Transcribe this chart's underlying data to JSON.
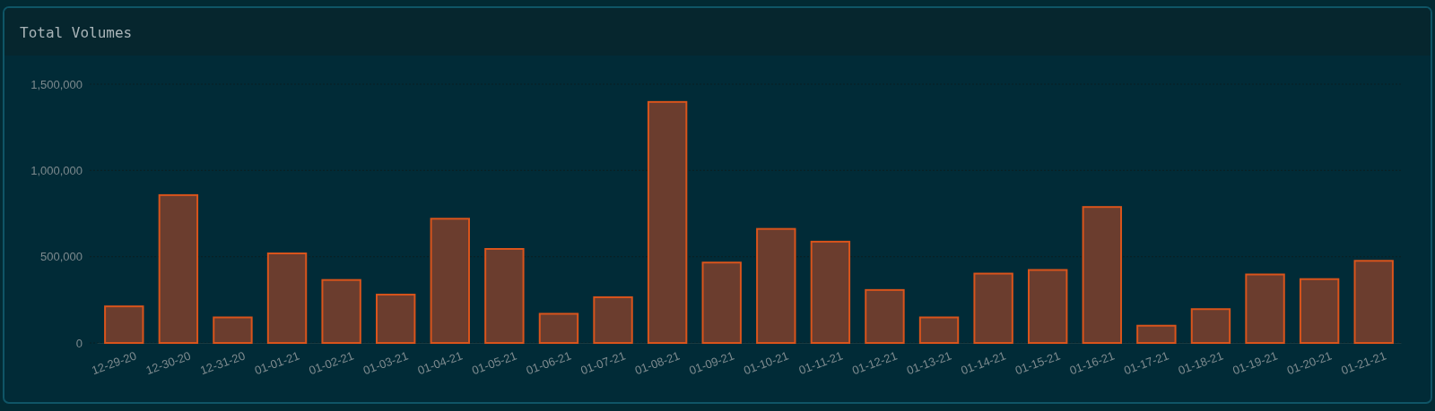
{
  "chart_data": {
    "type": "bar",
    "title": "Total Volumes",
    "categories": [
      "12-29-20",
      "12-30-20",
      "12-31-20",
      "01-01-21",
      "01-02-21",
      "01-03-21",
      "01-04-21",
      "01-05-21",
      "01-06-21",
      "01-07-21",
      "01-08-21",
      "01-09-21",
      "01-10-21",
      "01-11-21",
      "01-12-21",
      "01-13-21",
      "01-14-21",
      "01-15-21",
      "01-16-21",
      "01-17-21",
      "01-18-21",
      "01-19-21",
      "01-20-21",
      "01-21-21"
    ],
    "values": [
      212000,
      857000,
      148000,
      519000,
      365000,
      280000,
      720000,
      545000,
      169000,
      265000,
      1397000,
      466000,
      661000,
      587000,
      307000,
      148000,
      402000,
      423000,
      788000,
      100000,
      196000,
      397000,
      370000,
      476000
    ],
    "color": "#6b3d2e",
    "ylim": [
      0,
      1500000
    ],
    "yticks": [
      {
        "value": 0,
        "label": "0"
      },
      {
        "value": 500000,
        "label": "500,000"
      },
      {
        "value": 1000000,
        "label": "1,000,000"
      },
      {
        "value": 1500000,
        "label": "1,500,000"
      }
    ],
    "grid": "y"
  }
}
